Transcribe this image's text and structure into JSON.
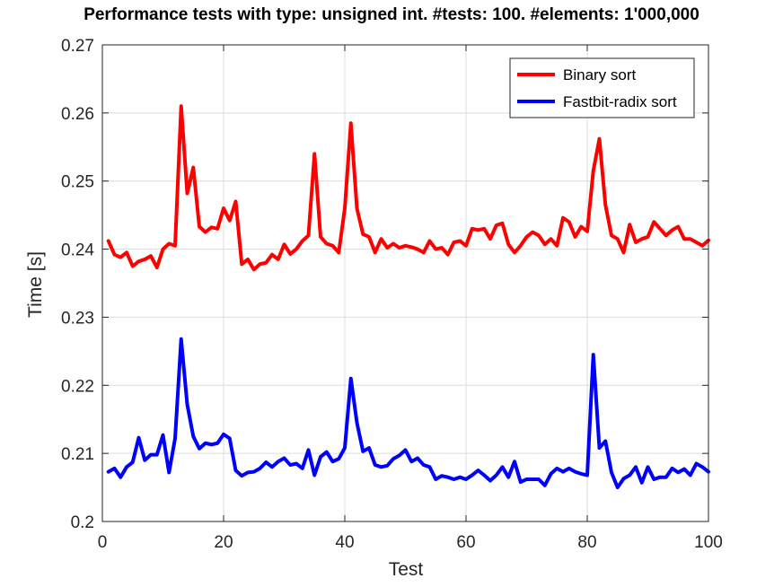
{
  "chart_data": {
    "type": "line",
    "title": "Performance tests with type: unsigned int. #tests: 100. #elements: 1'000,000",
    "xlabel": "Test",
    "ylabel": "Time [s]",
    "xlim": [
      0,
      100
    ],
    "ylim": [
      0.2,
      0.27
    ],
    "xticks": [
      0,
      20,
      40,
      60,
      80,
      100
    ],
    "yticks": [
      0.2,
      0.21,
      0.22,
      0.23,
      0.24,
      0.25,
      0.26,
      0.27
    ],
    "xtick_labels": [
      "0",
      "20",
      "40",
      "60",
      "80",
      "100"
    ],
    "ytick_labels": [
      "0.2",
      "0.21",
      "0.22",
      "0.23",
      "0.24",
      "0.25",
      "0.26",
      "0.27"
    ],
    "grid": true,
    "legend_position": "top-right",
    "x": [
      1,
      2,
      3,
      4,
      5,
      6,
      7,
      8,
      9,
      10,
      11,
      12,
      13,
      14,
      15,
      16,
      17,
      18,
      19,
      20,
      21,
      22,
      23,
      24,
      25,
      26,
      27,
      28,
      29,
      30,
      31,
      32,
      33,
      34,
      35,
      36,
      37,
      38,
      39,
      40,
      41,
      42,
      43,
      44,
      45,
      46,
      47,
      48,
      49,
      50,
      51,
      52,
      53,
      54,
      55,
      56,
      57,
      58,
      59,
      60,
      61,
      62,
      63,
      64,
      65,
      66,
      67,
      68,
      69,
      70,
      71,
      72,
      73,
      74,
      75,
      76,
      77,
      78,
      79,
      80,
      81,
      82,
      83,
      84,
      85,
      86,
      87,
      88,
      89,
      90,
      91,
      92,
      93,
      94,
      95,
      96,
      97,
      98,
      99,
      100
    ],
    "series": [
      {
        "name": "Binary sort",
        "color": "#ff0000",
        "values": [
          0.2412,
          0.2392,
          0.2388,
          0.2395,
          0.2375,
          0.2382,
          0.2385,
          0.239,
          0.2373,
          0.24,
          0.2408,
          0.2405,
          0.261,
          0.2482,
          0.252,
          0.2433,
          0.2425,
          0.2432,
          0.243,
          0.246,
          0.2442,
          0.247,
          0.2378,
          0.2385,
          0.237,
          0.2378,
          0.238,
          0.2392,
          0.2385,
          0.2407,
          0.2393,
          0.24,
          0.2412,
          0.242,
          0.254,
          0.2418,
          0.2408,
          0.2405,
          0.2395,
          0.246,
          0.2585,
          0.246,
          0.2422,
          0.2418,
          0.2395,
          0.2415,
          0.2402,
          0.2408,
          0.2402,
          0.2405,
          0.2403,
          0.24,
          0.2395,
          0.2412,
          0.24,
          0.2402,
          0.2392,
          0.241,
          0.2412,
          0.2405,
          0.243,
          0.2428,
          0.243,
          0.2415,
          0.2435,
          0.2438,
          0.2407,
          0.2395,
          0.2405,
          0.2418,
          0.2425,
          0.242,
          0.2407,
          0.2415,
          0.2405,
          0.2446,
          0.244,
          0.2418,
          0.2433,
          0.2426,
          0.2515,
          0.2562,
          0.2465,
          0.242,
          0.2415,
          0.2395,
          0.2436,
          0.241,
          0.2415,
          0.2418,
          0.244,
          0.243,
          0.242,
          0.2428,
          0.2433,
          0.2415,
          0.2415,
          0.241,
          0.2405,
          0.2413
        ]
      },
      {
        "name": "Fastbit-radix sort",
        "color": "#0000ff",
        "values": [
          0.2073,
          0.2078,
          0.2065,
          0.208,
          0.2087,
          0.2123,
          0.209,
          0.2098,
          0.2098,
          0.2127,
          0.2072,
          0.2122,
          0.2268,
          0.2172,
          0.2125,
          0.2107,
          0.2115,
          0.2113,
          0.2115,
          0.2128,
          0.2122,
          0.2075,
          0.2067,
          0.2072,
          0.2073,
          0.2078,
          0.2087,
          0.208,
          0.2088,
          0.2093,
          0.2083,
          0.2085,
          0.2078,
          0.2105,
          0.2068,
          0.2095,
          0.2102,
          0.2088,
          0.2092,
          0.2108,
          0.221,
          0.2145,
          0.2103,
          0.2108,
          0.2083,
          0.208,
          0.2082,
          0.2092,
          0.2097,
          0.2105,
          0.2088,
          0.2093,
          0.2083,
          0.208,
          0.2062,
          0.2067,
          0.2065,
          0.2062,
          0.2065,
          0.2062,
          0.2068,
          0.2075,
          0.2068,
          0.206,
          0.2068,
          0.208,
          0.2065,
          0.2088,
          0.2058,
          0.2062,
          0.2062,
          0.2062,
          0.2053,
          0.207,
          0.2078,
          0.2073,
          0.2078,
          0.2073,
          0.207,
          0.2068,
          0.2245,
          0.2108,
          0.2118,
          0.2072,
          0.205,
          0.2063,
          0.2068,
          0.208,
          0.2057,
          0.208,
          0.2062,
          0.2065,
          0.2065,
          0.2078,
          0.2072,
          0.2077,
          0.2068,
          0.2085,
          0.208,
          0.2073
        ]
      }
    ]
  }
}
